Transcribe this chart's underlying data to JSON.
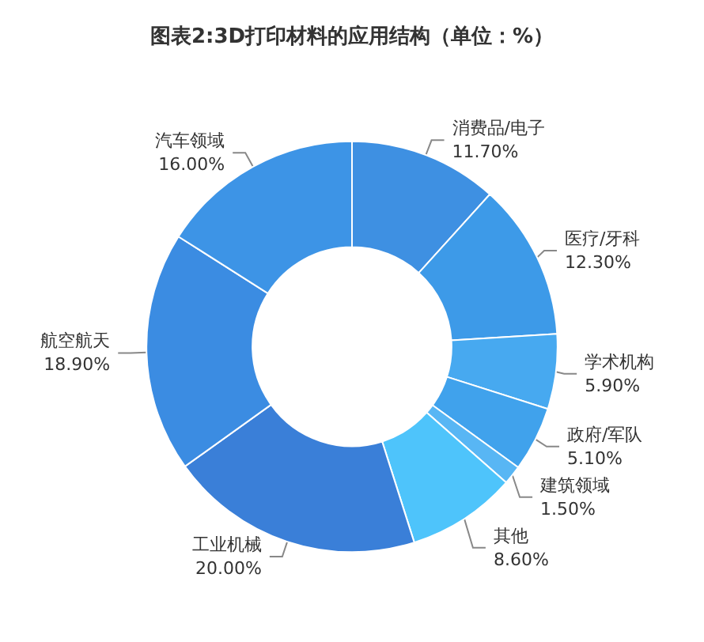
{
  "chart_data": {
    "type": "donut",
    "title": "图表2:3D打印材料的应用结构（单位：%）",
    "categories": [
      "消费品/电子",
      "医疗/牙科",
      "学术机构",
      "政府/军队",
      "建筑领域",
      "其他",
      "工业机械",
      "航空航天",
      "汽车领域"
    ],
    "values": [
      11.7,
      12.3,
      5.9,
      5.1,
      1.5,
      8.6,
      20.0,
      18.9,
      16.0
    ],
    "value_labels": [
      "11.70%",
      "12.30%",
      "5.90%",
      "5.10%",
      "1.50%",
      "8.60%",
      "20.00%",
      "18.90%",
      "16.00%"
    ],
    "colors": [
      "#3e90e2",
      "#3d9ae8",
      "#47a9f0",
      "#40a2ec",
      "#58b6f4",
      "#4ec4fb",
      "#3a7fd8",
      "#3b8ce2",
      "#3d94e6"
    ],
    "legend": false
  }
}
